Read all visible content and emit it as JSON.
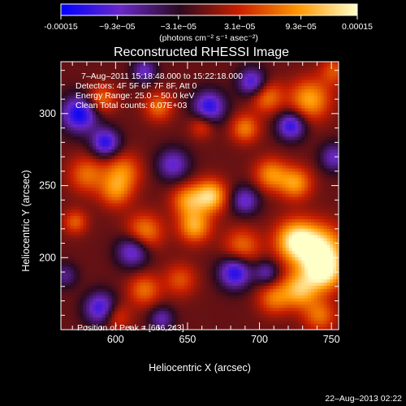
{
  "chart_data": {
    "type": "heatmap",
    "title": "Reconstructed RHESSI Image",
    "xlabel": "Heliocentric X (arcsec)",
    "ylabel": "Heliocentric Y (arcsec)",
    "xlim": [
      562,
      755
    ],
    "ylim": [
      150,
      336
    ],
    "x_ticks": [
      600,
      650,
      700,
      750
    ],
    "y_ticks": [
      200,
      250,
      300
    ],
    "colorbar": {
      "range": [
        -0.00015,
        0.00015
      ],
      "tick_values": [
        -0.00015,
        -9.3e-05,
        -3.1e-05,
        3.1e-05,
        9.3e-05,
        0.00015
      ],
      "tick_labels": [
        "-0.00015",
        "−9.3e−05",
        "−3.1e−05",
        "3.1e−05",
        "9.3e−05",
        "0.00015"
      ],
      "unit_label": "(photons cm⁻² s⁻¹ asec⁻²)"
    },
    "annotations": {
      "time": "7–Aug–2011 15:18:48.000 to 15:22:18.000",
      "detectors": "Detectors: 4F 5F 6F 7F 8F, Att 0",
      "energy": "Energy Range: 25.0 – 50.0 keV",
      "clean": "Clean     Total counts: 6.07E+03",
      "peak": "Position of Peak = [666,243]"
    },
    "peak_position": [
      666,
      243
    ],
    "colormap": [
      "#0000ff",
      "#6a28c8",
      "#2a0a20",
      "#c81e00",
      "#ff9600",
      "#ffffc8"
    ],
    "sources": [
      [
        1.0,
        742,
        205,
        12
      ],
      [
        0.9,
        725,
        212,
        10
      ],
      [
        0.8,
        745,
        190,
        9
      ],
      [
        0.75,
        728,
        178,
        9
      ],
      [
        0.85,
        666,
        243,
        8
      ],
      [
        0.6,
        650,
        240,
        8
      ],
      [
        0.7,
        655,
        222,
        8
      ],
      [
        0.6,
        620,
        218,
        9
      ],
      [
        0.55,
        590,
        310,
        7
      ],
      [
        0.5,
        580,
        258,
        9
      ],
      [
        0.55,
        605,
        260,
        9
      ],
      [
        0.5,
        600,
        246,
        8
      ],
      [
        0.6,
        708,
        258,
        8
      ],
      [
        0.65,
        725,
        252,
        8
      ],
      [
        0.7,
        735,
        310,
        10
      ],
      [
        0.55,
        705,
        312,
        8
      ],
      [
        0.55,
        690,
        290,
        7
      ],
      [
        0.5,
        688,
        208,
        9
      ],
      [
        0.4,
        645,
        185,
        8
      ],
      [
        0.5,
        620,
        178,
        8
      ],
      [
        0.5,
        710,
        172,
        8
      ],
      [
        0.5,
        742,
        160,
        8
      ],
      [
        0.45,
        600,
        160,
        7
      ],
      [
        0.45,
        572,
        225,
        6
      ],
      [
        0.4,
        660,
        292,
        6
      ],
      [
        0.5,
        630,
        305,
        7
      ],
      [
        0.4,
        752,
        330,
        7
      ],
      [
        -0.9,
        575,
        300,
        9
      ],
      [
        -0.8,
        593,
        280,
        7
      ],
      [
        -0.8,
        665,
        305,
        8
      ],
      [
        -0.75,
        695,
        322,
        7
      ],
      [
        -0.8,
        722,
        292,
        7
      ],
      [
        -0.85,
        683,
        190,
        8
      ],
      [
        -0.8,
        590,
        165,
        8
      ],
      [
        -0.7,
        612,
        205,
        8
      ],
      [
        -0.6,
        640,
        265,
        8
      ],
      [
        -0.6,
        690,
        240,
        7
      ],
      [
        -0.55,
        752,
        270,
        7
      ],
      [
        -0.5,
        705,
        190,
        6
      ],
      [
        -0.5,
        632,
        158,
        6
      ],
      [
        -0.55,
        620,
        330,
        6
      ],
      [
        -0.4,
        565,
        188,
        6
      ]
    ]
  },
  "footer": {
    "timestamp": "22–Aug–2013 02:22"
  }
}
